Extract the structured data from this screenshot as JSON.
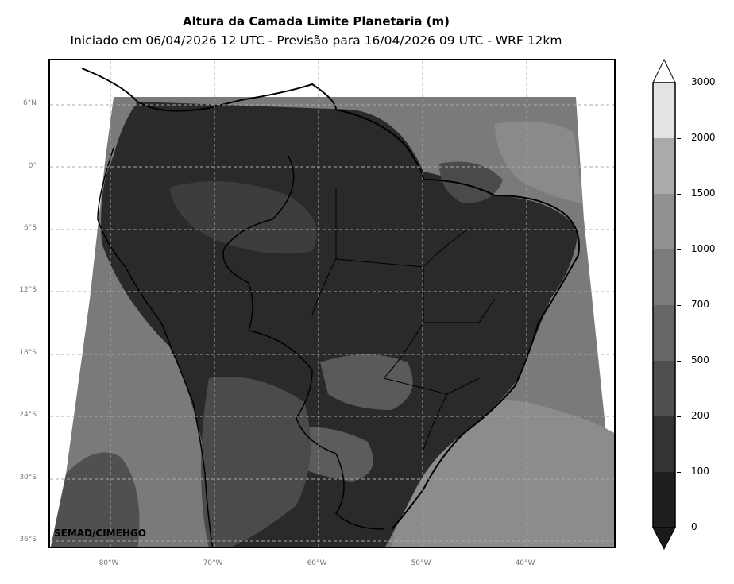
{
  "map": {
    "title": "Altura da Camada Limite Planetaria (m)",
    "subtitle": "Iniciado em 06/04/2026 12 UTC - Previsão para 16/04/2026 09 UTC - WRF 12km",
    "credit": "SEMAD/CIMEHGO",
    "lat_labels": [
      "6°N",
      "0°",
      "6°S",
      "12°S",
      "18°S",
      "24°S",
      "30°S",
      "36°S"
    ],
    "lon_labels": [
      "80°W",
      "70°W",
      "60°W",
      "50°W",
      "40°W"
    ],
    "region": "South America"
  },
  "colorbar": {
    "levels": [
      "0",
      "100",
      "200",
      "500",
      "700",
      "1000",
      "1500",
      "2000",
      "3000"
    ],
    "colors": [
      "#1f1f1f",
      "#333333",
      "#4f4f4f",
      "#676767",
      "#7c7c7c",
      "#919191",
      "#aaaaaa",
      "#e3e3e3"
    ],
    "extend_low_color": "#1a1a1a",
    "extend_high_color": "#ffffff"
  }
}
